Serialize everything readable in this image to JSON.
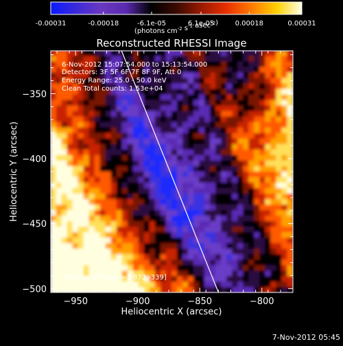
{
  "chart_data": {
    "type": "heatmap",
    "title": "Reconstructed RHESSI Image",
    "xlabel": "Heliocentric X (arcsec)",
    "ylabel": "Heliocentric Y (arcsec)",
    "xlim": [
      -970,
      -775
    ],
    "ylim": [
      -503,
      -317
    ],
    "xticks": [
      -950,
      -900,
      -850,
      -800
    ],
    "yticks": [
      -500,
      -450,
      -400,
      -350
    ],
    "colorbar": {
      "range": [
        -0.00031,
        0.00031
      ],
      "tick_values": [
        -0.00031,
        -0.00018,
        -6.1e-05,
        6.1e-05,
        0.00018,
        0.00031
      ],
      "tick_labels": [
        "-0.00031",
        "-0.00018",
        "-6.1e-05",
        "6.1e-05",
        "0.00018",
        "0.00031"
      ],
      "unit_label": "(photons cm^-2 s^-1 asec^-2)"
    },
    "annotations": {
      "time": "6-Nov-2012 15:07:54.000 to 15:13:54.000",
      "detectors": "Detectors: 3F 5F 6F 7F 8F 9F, Att 0",
      "energy": "Energy Range: 25.0 - 50.0 keV",
      "clean": "Clean    Total counts: 1.53e+04",
      "peak": "Position of Peak = [-873,-339]"
    },
    "limb_line": {
      "x": [
        -913,
        -835
      ],
      "y": [
        -317,
        -503
      ]
    },
    "timestamp": "7-Nov-2012 05:45",
    "colors": {
      "background": "#000000",
      "text": "#ffffff",
      "scale": [
        "#0a1aff",
        "#3a2ad8",
        "#6a38c0",
        "#5a2ab0",
        "#000000",
        "#3a0a00",
        "#9a1a00",
        "#e83000",
        "#ff7a00",
        "#ffd000",
        "#ffffe8"
      ]
    }
  }
}
